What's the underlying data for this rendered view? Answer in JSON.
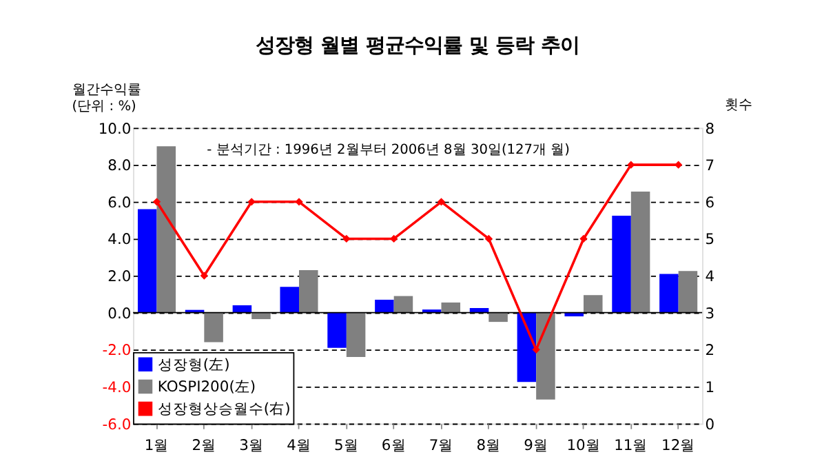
{
  "chart_data": {
    "type": "bar",
    "title": "성장형 월별 평균수익률 및 등락 추이",
    "ylabel": "월간수익률\n(단위 : %)",
    "y2label": "횟수",
    "categories": [
      "1월",
      "2월",
      "3월",
      "4월",
      "5월",
      "6월",
      "7월",
      "8월",
      "9월",
      "10월",
      "11월",
      "12월"
    ],
    "series": [
      {
        "name": "성장형(左)",
        "color": "#0000ff",
        "values": [
          5.6,
          0.15,
          0.4,
          1.4,
          -1.9,
          0.7,
          0.17,
          0.25,
          -3.75,
          -0.2,
          5.25,
          2.1
        ]
      },
      {
        "name": "KOSPI200(左)",
        "color": "#808080",
        "values": [
          9.0,
          -1.6,
          -0.35,
          2.3,
          -2.4,
          0.9,
          0.55,
          -0.5,
          -4.7,
          0.95,
          6.55,
          2.25
        ]
      },
      {
        "name": "성장형상승월수(右)",
        "color": "#ff0000",
        "type": "line",
        "axis": "y2",
        "marker": "diamond",
        "values": [
          6,
          4,
          6,
          6,
          5,
          5,
          6,
          5,
          2,
          5,
          7,
          7
        ]
      }
    ],
    "ylim": [
      -6,
      10
    ],
    "yticks": [
      {
        "value": -6,
        "label": "-6.0"
      },
      {
        "value": -4,
        "label": "-4.0"
      },
      {
        "value": -2,
        "label": "-2.0"
      },
      {
        "value": 0,
        "label": "0.0"
      },
      {
        "value": 2,
        "label": "2.0"
      },
      {
        "value": 4,
        "label": "4.0"
      },
      {
        "value": 6,
        "label": "6.0"
      },
      {
        "value": 8,
        "label": "8.0"
      },
      {
        "value": 10,
        "label": "10.0"
      }
    ],
    "y2lim": [
      0,
      8
    ],
    "y2ticks": [
      0,
      1,
      2,
      3,
      4,
      5,
      6,
      7,
      8
    ],
    "grid": "y",
    "legend": "bottom left",
    "annotations": [
      "- 분석기간 : 1996년 2월부터 2006년 8월 30일(127개 월)"
    ]
  }
}
